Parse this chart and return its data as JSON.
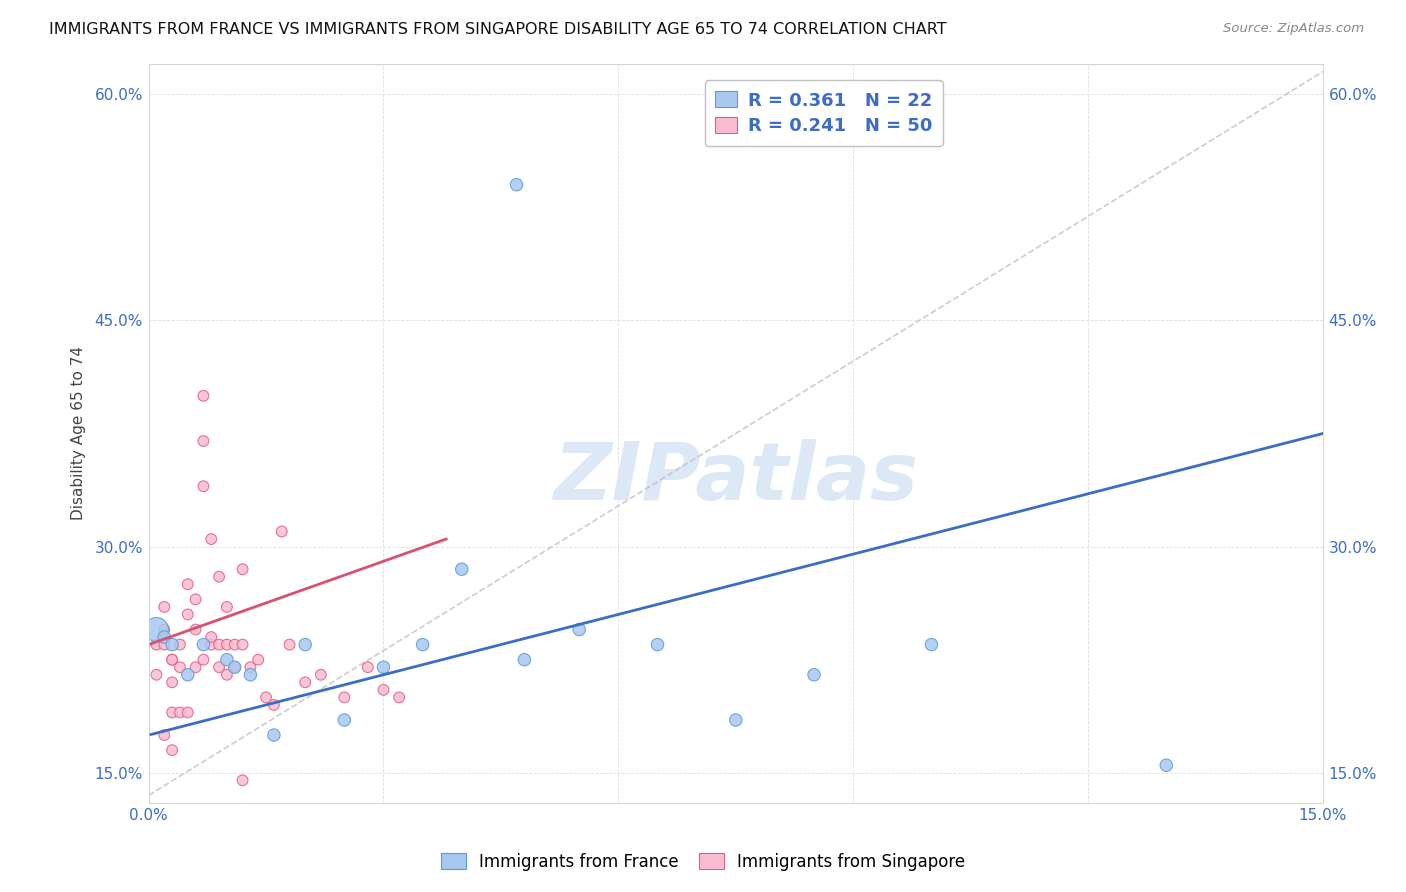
{
  "title": "IMMIGRANTS FROM FRANCE VS IMMIGRANTS FROM SINGAPORE DISABILITY AGE 65 TO 74 CORRELATION CHART",
  "source": "Source: ZipAtlas.com",
  "ylabel": "Disability Age 65 to 74",
  "xlim": [
    0.0,
    0.15
  ],
  "ylim": [
    0.13,
    0.62
  ],
  "xticks": [
    0.0,
    0.03,
    0.06,
    0.09,
    0.12,
    0.15
  ],
  "xticklabels": [
    "0.0%",
    "",
    "",
    "",
    "",
    "15.0%"
  ],
  "yticks": [
    0.15,
    0.3,
    0.45,
    0.6
  ],
  "yticklabels": [
    "15.0%",
    "30.0%",
    "45.0%",
    "60.0%"
  ],
  "legend_blue_R": "R = 0.361",
  "legend_blue_N": "N = 22",
  "legend_pink_R": "R = 0.241",
  "legend_pink_N": "N = 50",
  "legend_label_blue": "Immigrants from France",
  "legend_label_pink": "Immigrants from Singapore",
  "blue_fill": "#A8C8F0",
  "blue_edge": "#5B9BD5",
  "pink_fill": "#F8BBD0",
  "pink_edge": "#E06080",
  "blue_line_color": "#3B6CC7",
  "pink_line_color": "#D95070",
  "dash_line_color": "#C0C0C0",
  "watermark": "ZIPatlas",
  "blue_scatter_x": [
    0.001,
    0.002,
    0.003,
    0.005,
    0.007,
    0.01,
    0.011,
    0.013,
    0.016,
    0.02,
    0.025,
    0.03,
    0.035,
    0.04,
    0.048,
    0.055,
    0.065,
    0.075,
    0.085,
    0.1,
    0.047,
    0.13
  ],
  "blue_scatter_y": [
    0.245,
    0.24,
    0.235,
    0.215,
    0.235,
    0.225,
    0.22,
    0.215,
    0.175,
    0.235,
    0.185,
    0.22,
    0.235,
    0.285,
    0.225,
    0.245,
    0.235,
    0.185,
    0.215,
    0.235,
    0.54,
    0.155
  ],
  "blue_scatter_size": [
    300,
    80,
    80,
    80,
    80,
    80,
    80,
    80,
    80,
    80,
    80,
    80,
    80,
    80,
    80,
    80,
    80,
    80,
    80,
    80,
    80,
    80
  ],
  "pink_scatter_x": [
    0.001,
    0.001,
    0.002,
    0.002,
    0.002,
    0.003,
    0.003,
    0.003,
    0.004,
    0.004,
    0.005,
    0.005,
    0.006,
    0.006,
    0.007,
    0.007,
    0.007,
    0.008,
    0.008,
    0.009,
    0.009,
    0.01,
    0.01,
    0.011,
    0.012,
    0.012,
    0.013,
    0.014,
    0.015,
    0.016,
    0.017,
    0.018,
    0.02,
    0.022,
    0.025,
    0.028,
    0.03,
    0.032,
    0.002,
    0.003,
    0.003,
    0.004,
    0.005,
    0.006,
    0.007,
    0.008,
    0.009,
    0.01,
    0.011,
    0.012
  ],
  "pink_scatter_y": [
    0.235,
    0.215,
    0.245,
    0.26,
    0.235,
    0.225,
    0.21,
    0.225,
    0.22,
    0.235,
    0.275,
    0.255,
    0.265,
    0.245,
    0.4,
    0.37,
    0.34,
    0.305,
    0.235,
    0.28,
    0.235,
    0.26,
    0.235,
    0.235,
    0.285,
    0.235,
    0.22,
    0.225,
    0.2,
    0.195,
    0.31,
    0.235,
    0.21,
    0.215,
    0.2,
    0.22,
    0.205,
    0.2,
    0.175,
    0.19,
    0.165,
    0.19,
    0.19,
    0.22,
    0.225,
    0.24,
    0.22,
    0.215,
    0.22,
    0.145
  ],
  "pink_scatter_size": [
    60,
    60,
    60,
    60,
    60,
    60,
    60,
    60,
    60,
    60,
    60,
    60,
    60,
    60,
    60,
    60,
    60,
    60,
    60,
    60,
    60,
    60,
    60,
    60,
    60,
    60,
    60,
    60,
    60,
    60,
    60,
    60,
    60,
    60,
    60,
    60,
    60,
    60,
    60,
    60,
    60,
    60,
    60,
    60,
    60,
    60,
    60,
    60,
    60,
    60
  ],
  "blue_line_x": [
    0.0,
    0.15
  ],
  "blue_line_y": [
    0.175,
    0.375
  ],
  "pink_line_x": [
    0.0,
    0.038
  ],
  "pink_line_y": [
    0.235,
    0.305
  ],
  "dash_line_x": [
    0.0,
    0.15
  ],
  "dash_line_y": [
    0.135,
    0.615
  ]
}
